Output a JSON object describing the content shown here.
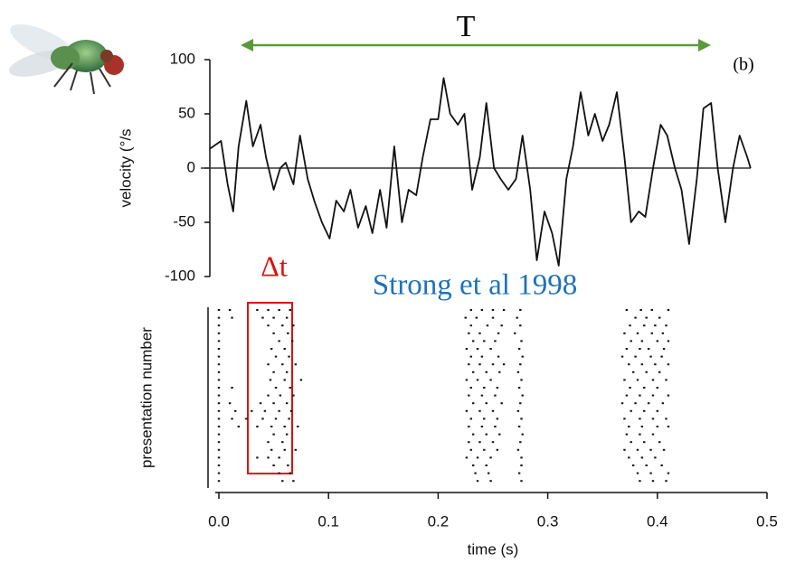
{
  "chart_data": [
    {
      "type": "line",
      "ylabel": "velocity (°/s",
      "annotations": [
        "T",
        "(b)",
        "Δt",
        "Strong et al 1998"
      ],
      "x": [
        -0.008,
        0.002,
        0.008,
        0.013,
        0.018,
        0.025,
        0.031,
        0.038,
        0.043,
        0.05,
        0.056,
        0.061,
        0.068,
        0.074,
        0.081,
        0.087,
        0.094,
        0.101,
        0.107,
        0.114,
        0.12,
        0.127,
        0.134,
        0.14,
        0.147,
        0.153,
        0.16,
        0.167,
        0.173,
        0.18,
        0.186,
        0.193,
        0.2,
        0.205,
        0.211,
        0.218,
        0.224,
        0.231,
        0.238,
        0.244,
        0.251,
        0.257,
        0.264,
        0.271,
        0.277,
        0.284,
        0.29,
        0.297,
        0.304,
        0.31,
        0.317,
        0.323,
        0.33,
        0.337,
        0.343,
        0.35,
        0.356,
        0.363,
        0.37,
        0.376,
        0.383,
        0.389,
        0.396,
        0.403,
        0.409,
        0.416,
        0.422,
        0.429,
        0.436,
        0.442,
        0.449,
        0.455,
        0.462,
        0.469,
        0.475,
        0.482,
        0.485
      ],
      "values": [
        18,
        25,
        -15,
        -40,
        20,
        62,
        20,
        40,
        10,
        -20,
        0,
        5,
        -15,
        30,
        -10,
        -30,
        -50,
        -65,
        -30,
        -40,
        -20,
        -55,
        -35,
        -60,
        -20,
        -55,
        20,
        -50,
        -20,
        -25,
        10,
        45,
        45,
        83,
        50,
        40,
        50,
        -20,
        10,
        60,
        0,
        -10,
        -20,
        -10,
        30,
        -20,
        -85,
        -40,
        -60,
        -90,
        -10,
        20,
        70,
        30,
        50,
        25,
        40,
        70,
        10,
        -50,
        -40,
        -45,
        0,
        40,
        30,
        0,
        -20,
        -70,
        -10,
        55,
        60,
        0,
        -50,
        0,
        30,
        10,
        0
      ],
      "color": "#111111",
      "ylim": [
        -100,
        100
      ],
      "yticks": [
        100,
        50,
        0,
        -50,
        -100
      ]
    },
    {
      "type": "raster",
      "xlabel": "time (s)",
      "ylabel": "presentation number",
      "xlim": [
        0,
        0.5
      ],
      "xticks": [
        {
          "value": 0,
          "label": "0.0"
        },
        0.1,
        0.2,
        0.3,
        0.4,
        0.5
      ],
      "color": "#111111",
      "trials": [
        [
          0.0,
          0.01,
          0.035,
          0.045,
          0.055,
          0.065,
          0.23,
          0.24,
          0.25,
          0.26,
          0.275,
          0.372,
          0.385,
          0.395,
          0.41
        ],
        [
          0.0,
          0.012,
          0.04,
          0.05,
          0.062,
          0.225,
          0.235,
          0.25,
          0.272,
          0.38,
          0.39,
          0.402
        ],
        [
          0.0,
          0.045,
          0.058,
          0.068,
          0.23,
          0.245,
          0.258,
          0.275,
          0.375,
          0.388,
          0.398,
          0.408
        ],
        [
          0.0,
          0.05,
          0.063,
          0.228,
          0.238,
          0.255,
          0.27,
          0.37,
          0.382,
          0.395,
          0.405
        ],
        [
          0.0,
          0.055,
          0.067,
          0.232,
          0.242,
          0.252,
          0.276,
          0.376,
          0.386,
          0.4,
          0.41
        ],
        [
          0.0,
          0.048,
          0.06,
          0.226,
          0.236,
          0.248,
          0.274,
          0.372,
          0.384,
          0.392,
          0.406
        ],
        [
          0.0,
          0.052,
          0.064,
          0.23,
          0.24,
          0.255,
          0.277,
          0.368,
          0.38,
          0.394,
          0.404
        ],
        [
          0.0,
          0.045,
          0.058,
          0.07,
          0.228,
          0.238,
          0.25,
          0.26,
          0.275,
          0.374,
          0.386,
          0.398,
          0.41
        ],
        [
          0.0,
          0.05,
          0.062,
          0.232,
          0.244,
          0.256,
          0.273,
          0.378,
          0.39,
          0.402
        ],
        [
          0.0,
          0.047,
          0.06,
          0.075,
          0.226,
          0.236,
          0.248,
          0.276,
          0.37,
          0.382,
          0.396,
          0.408
        ],
        [
          0.0,
          0.012,
          0.052,
          0.065,
          0.23,
          0.242,
          0.254,
          0.274,
          0.375,
          0.388,
          0.4
        ],
        [
          0.0,
          0.045,
          0.056,
          0.068,
          0.228,
          0.24,
          0.252,
          0.277,
          0.372,
          0.384,
          0.396,
          0.41
        ],
        [
          0.0,
          0.01,
          0.038,
          0.05,
          0.062,
          0.232,
          0.244,
          0.258,
          0.275,
          0.368,
          0.38,
          0.392,
          0.405
        ],
        [
          0.0,
          0.015,
          0.03,
          0.042,
          0.055,
          0.066,
          0.226,
          0.238,
          0.25,
          0.273,
          0.376,
          0.388,
          0.4
        ],
        [
          0.0,
          0.012,
          0.025,
          0.04,
          0.052,
          0.064,
          0.23,
          0.242,
          0.254,
          0.276,
          0.37,
          0.384,
          0.396,
          0.408
        ],
        [
          0.0,
          0.018,
          0.035,
          0.048,
          0.06,
          0.072,
          0.228,
          0.24,
          0.252,
          0.274,
          0.374,
          0.386,
          0.4,
          0.41
        ],
        [
          0.0,
          0.05,
          0.062,
          0.232,
          0.244,
          0.256,
          0.277,
          0.372,
          0.384,
          0.396
        ],
        [
          0.0,
          0.045,
          0.058,
          0.228,
          0.238,
          0.25,
          0.275,
          0.376,
          0.388,
          0.402
        ],
        [
          0.0,
          0.048,
          0.06,
          0.07,
          0.23,
          0.242,
          0.254,
          0.273,
          0.37,
          0.382,
          0.394,
          0.406
        ],
        [
          0.0,
          0.035,
          0.045,
          0.055,
          0.226,
          0.236,
          0.248,
          0.276,
          0.374,
          0.386,
          0.398
        ],
        [
          0.0,
          0.05,
          0.063,
          0.232,
          0.244,
          0.276,
          0.378,
          0.39,
          0.404
        ],
        [
          0.0,
          0.055,
          0.065,
          0.234,
          0.246,
          0.274,
          0.382,
          0.394,
          0.41
        ],
        [
          0.0,
          0.058,
          0.068,
          0.236,
          0.248,
          0.276,
          0.384,
          0.396,
          0.408
        ]
      ]
    }
  ]
}
